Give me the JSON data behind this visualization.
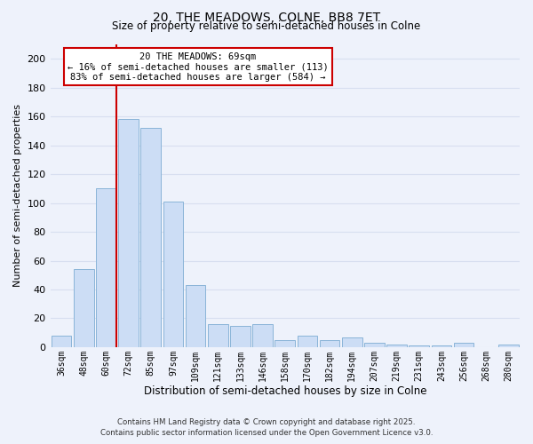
{
  "title": "20, THE MEADOWS, COLNE, BB8 7ET",
  "subtitle": "Size of property relative to semi-detached houses in Colne",
  "xlabel": "Distribution of semi-detached houses by size in Colne",
  "ylabel": "Number of semi-detached properties",
  "bar_labels": [
    "36sqm",
    "48sqm",
    "60sqm",
    "72sqm",
    "85sqm",
    "97sqm",
    "109sqm",
    "121sqm",
    "133sqm",
    "146sqm",
    "158sqm",
    "170sqm",
    "182sqm",
    "194sqm",
    "207sqm",
    "219sqm",
    "231sqm",
    "243sqm",
    "256sqm",
    "268sqm",
    "280sqm"
  ],
  "bar_values": [
    8,
    54,
    110,
    158,
    152,
    101,
    43,
    16,
    15,
    16,
    5,
    8,
    5,
    7,
    3,
    2,
    1,
    1,
    3,
    0,
    2
  ],
  "bar_color": "#ccddf5",
  "bar_edge_color": "#8ab4d8",
  "ylim": [
    0,
    210
  ],
  "yticks": [
    0,
    20,
    40,
    60,
    80,
    100,
    120,
    140,
    160,
    180,
    200
  ],
  "vline_color": "#cc0000",
  "annotation_text": "20 THE MEADOWS: 69sqm\n← 16% of semi-detached houses are smaller (113)\n83% of semi-detached houses are larger (584) →",
  "annotation_box_color": "#ffffff",
  "annotation_box_edgecolor": "#cc0000",
  "footer_line1": "Contains HM Land Registry data © Crown copyright and database right 2025.",
  "footer_line2": "Contains public sector information licensed under the Open Government Licence v3.0.",
  "background_color": "#eef2fb",
  "grid_color": "#d8dff0"
}
